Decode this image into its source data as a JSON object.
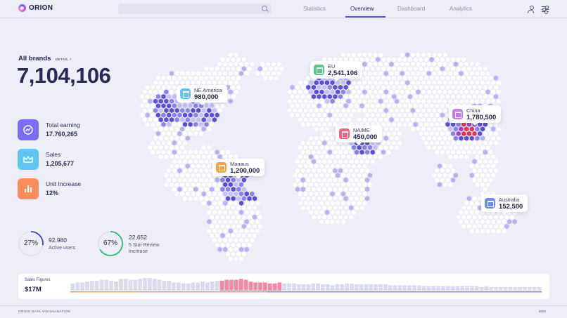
{
  "app": {
    "name": "ORION"
  },
  "search": {
    "value": "",
    "placeholder": ""
  },
  "nav": {
    "tabs": [
      {
        "label": "Statistics"
      },
      {
        "label": "Overview"
      },
      {
        "label": "Dashboard"
      },
      {
        "label": "Analytics"
      }
    ],
    "active": "Overview"
  },
  "brands": {
    "label": "All brands",
    "detail": "DETAIL",
    "total": "7,104,106"
  },
  "stats": [
    {
      "label": "Total earning",
      "value": "17.760,265",
      "color": "#7a6cf5",
      "icon": "trend-icon"
    },
    {
      "label": "Sales",
      "value": "1,205,677",
      "color": "#5fc6f2",
      "icon": "crown-icon"
    },
    {
      "label": "Unit Increase",
      "value": "12%",
      "color": "#f98d5c",
      "icon": "bar-chart-icon"
    }
  ],
  "rings": [
    {
      "percent_label": "27%",
      "percent": 27,
      "value": "92,980",
      "sub": "Active users",
      "color": "#3c3ad8"
    },
    {
      "percent_label": "67%",
      "percent": 67,
      "value": "22,652",
      "sub1": "5 Star Review",
      "sub2": "Increase",
      "color": "#1fbf6a"
    }
  ],
  "regions": [
    {
      "name": "NE America",
      "value": "980,000",
      "color": "#5cc5f3"
    },
    {
      "name": "EU",
      "value": "2,541,106",
      "color": "#54c98c"
    },
    {
      "name": "China",
      "value": "1,780,500",
      "color": "#c77be8"
    },
    {
      "name": "NA/ME",
      "value": "450,000",
      "color": "#f26679"
    },
    {
      "name": "Manaus",
      "value": "1,200,000",
      "color": "#f7a344"
    },
    {
      "name": "Australia",
      "value": "152,500",
      "color": "#6d8ef0"
    }
  ],
  "sales": {
    "label": "Sales Figures",
    "value": "$17M",
    "colors": {
      "base": "#dadbeb",
      "highlight": "#f38aa5",
      "line_left": "#f3a344",
      "line_mid": "#f38aa5",
      "line_right": "#8a86f0"
    },
    "bars": [
      8,
      9,
      9,
      10,
      11,
      11,
      12,
      12,
      11,
      10,
      13,
      13,
      12,
      12,
      13,
      14,
      14,
      13,
      12,
      11,
      11,
      9,
      9,
      8,
      8,
      9,
      9,
      10,
      9,
      10,
      11,
      11,
      12,
      12,
      12,
      13,
      12,
      10,
      9,
      9,
      9,
      8,
      8,
      9,
      8,
      8,
      8,
      7,
      7,
      7,
      8,
      8,
      7,
      7,
      6,
      7,
      7,
      8,
      8,
      7,
      7,
      7,
      7,
      7,
      7,
      7,
      6,
      6,
      6,
      6,
      6,
      6,
      6,
      5,
      5,
      5,
      5,
      5,
      5,
      5,
      5,
      5,
      5,
      5,
      5,
      4,
      5,
      4,
      4,
      4,
      4,
      4,
      4,
      4,
      4,
      4,
      4,
      4
    ],
    "highlight_range": [
      31,
      43
    ]
  },
  "footer": {
    "left": "ORION DATA VISUALISATION",
    "right": "2022"
  }
}
